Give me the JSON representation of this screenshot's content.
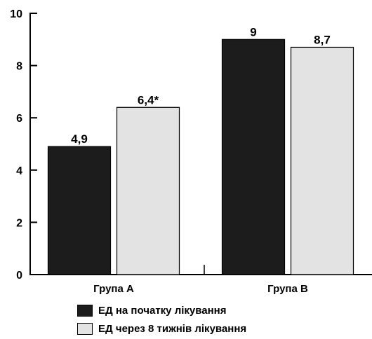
{
  "chart_data": {
    "type": "bar",
    "categories": [
      "Група А",
      "Група В"
    ],
    "series": [
      {
        "name": "ЕД на початку лікування",
        "values": [
          4.9,
          9
        ],
        "labels": [
          "4,9",
          "9"
        ],
        "color": "#1c1c1c"
      },
      {
        "name": "ЕД через 8 тижнів лікування",
        "values": [
          6.4,
          8.7
        ],
        "labels": [
          "6,4*",
          "8,7"
        ],
        "color": "#e3e3e3"
      }
    ],
    "ylim": [
      0,
      10
    ],
    "yticks": [
      0,
      2,
      4,
      6,
      8,
      10
    ],
    "grid": false,
    "legend_position": "bottom"
  }
}
